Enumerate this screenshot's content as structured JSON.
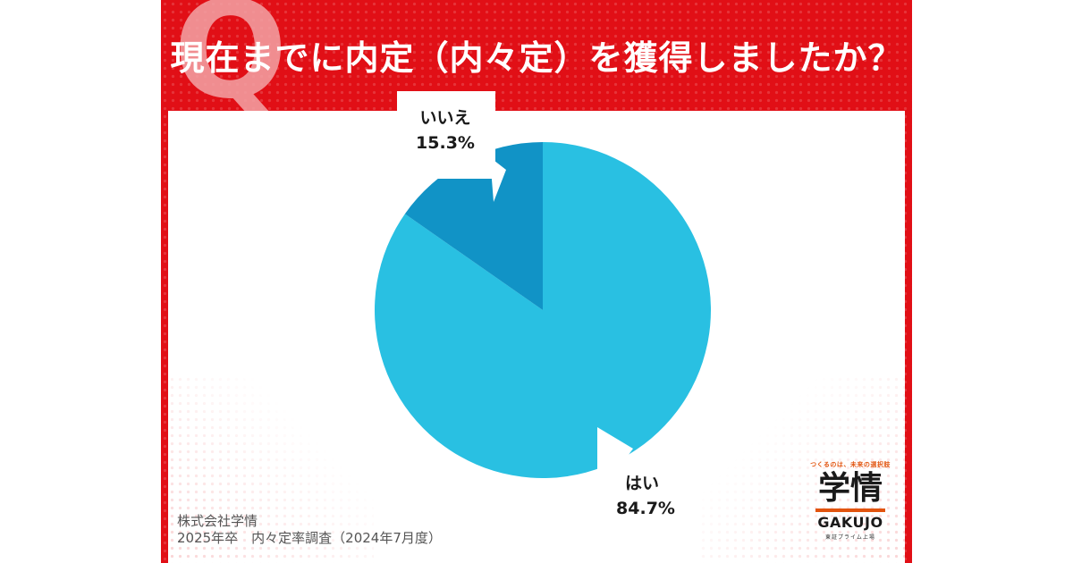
{
  "header": {
    "question": "現在までに内定（内々定）を獲得しましたか？"
  },
  "chart_data": {
    "type": "pie",
    "categories": [
      "はい",
      "いいえ"
    ],
    "values": [
      84.7,
      15.3
    ],
    "value_labels": [
      "84.7%",
      "15.3%"
    ],
    "colors": [
      "#29c0e2",
      "#1193c6"
    ],
    "start": "12 o'clock, clockwise"
  },
  "source": {
    "line1": "株式会社学情",
    "line2": "2025年卒　内々定率調査（2024年7月度）"
  },
  "logo": {
    "tagline": "つくるのは、未来の選択肢",
    "main": "学情",
    "en": "GAKUJO",
    "sub": "東証プライム上場"
  },
  "colors": {
    "brand_red": "#e10f16",
    "logo_orange": "#e2540f"
  }
}
